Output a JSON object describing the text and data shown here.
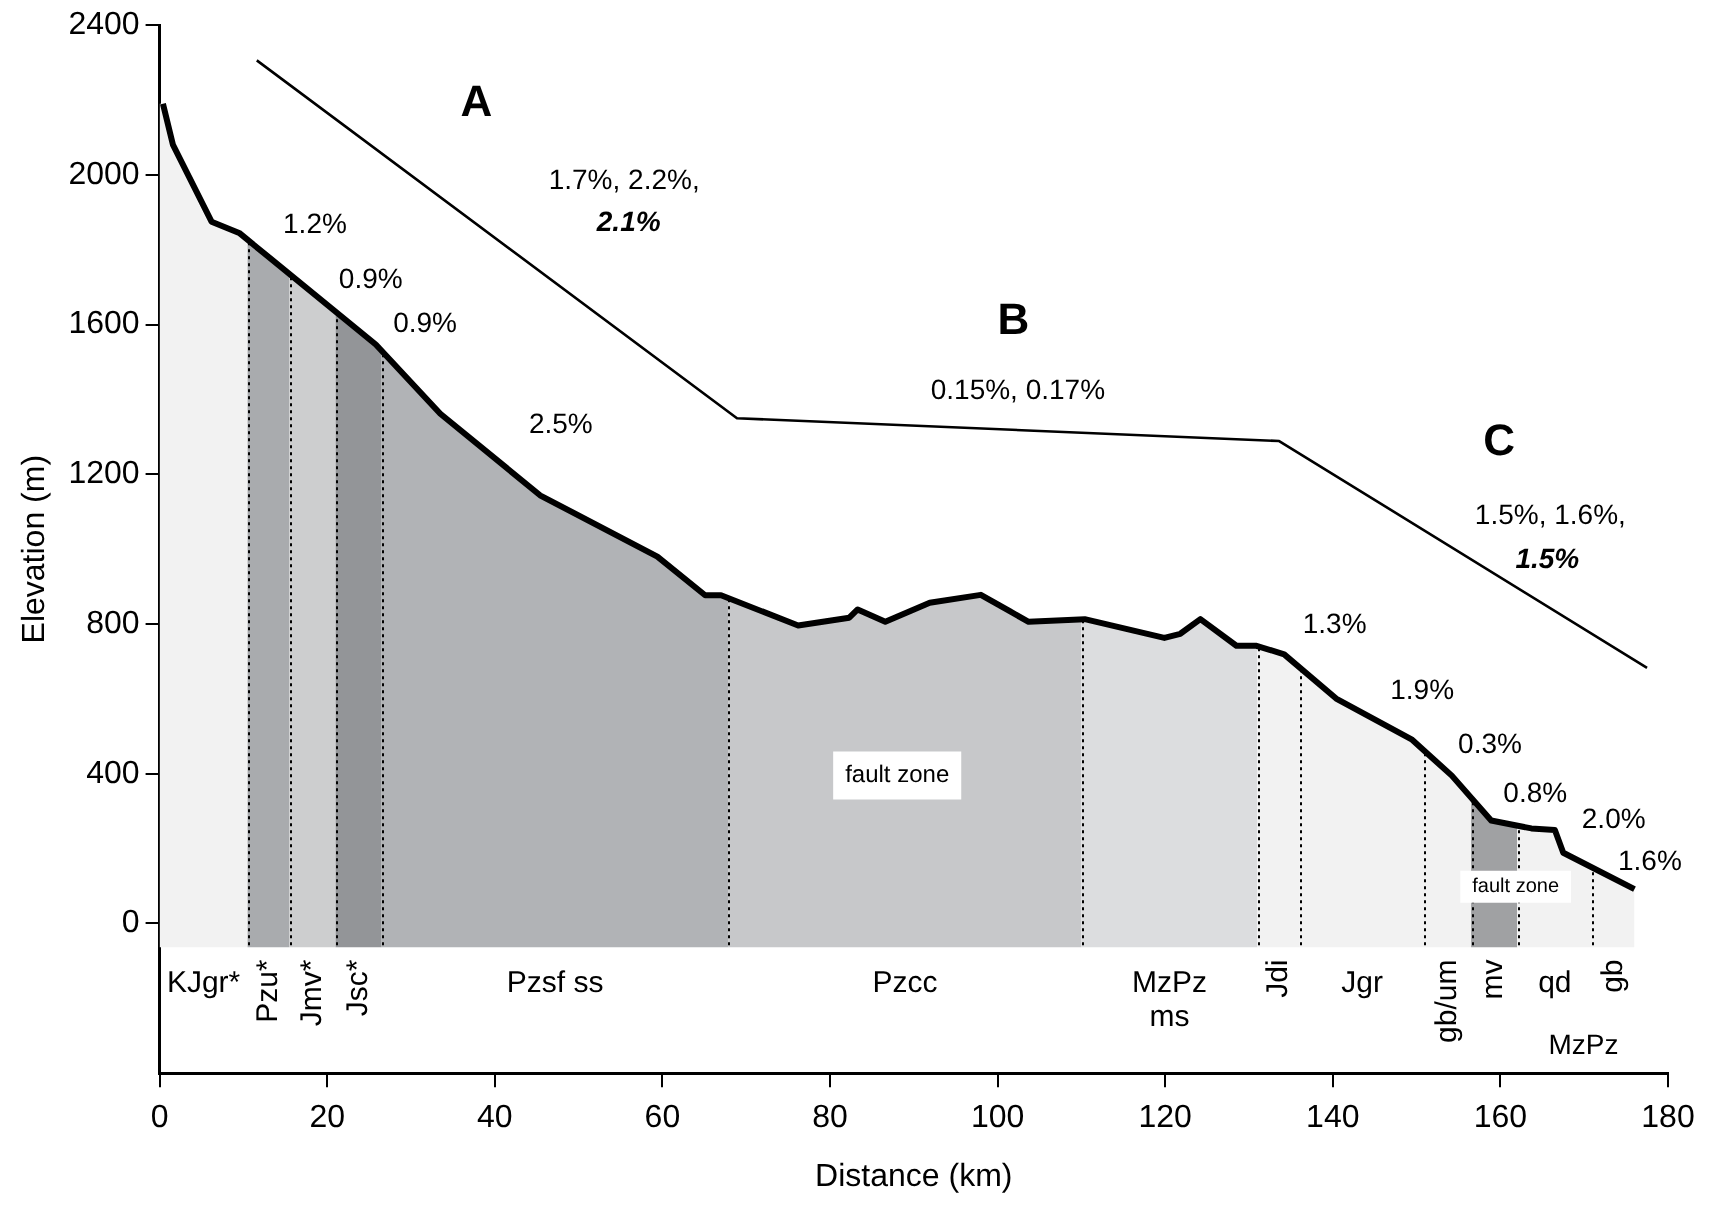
{
  "chart_data": {
    "type": "line",
    "xlabel": "Distance (km)",
    "ylabel": "Elevation (m)",
    "xlim": [
      0,
      180
    ],
    "xticks": [
      0,
      20,
      40,
      60,
      80,
      100,
      120,
      140,
      160,
      180
    ],
    "ylim": [
      -400,
      2400
    ],
    "yticks": [
      0,
      400,
      800,
      1200,
      1600,
      2000,
      2400
    ],
    "grid": false,
    "legend": false,
    "series": [
      {
        "type": "line",
        "color": "#000000",
        "x": [
          0.4,
          1.6,
          6.2,
          9.5,
          25.8,
          33.5,
          45.4,
          59.4,
          65.1,
          67,
          76.2,
          82.3,
          83.3,
          86.6,
          91.9,
          98,
          101.4,
          103.7,
          110.4,
          119.9,
          121.8,
          124.2,
          128.5,
          130.9,
          134.2,
          140.4,
          149.4,
          154.2,
          158.9,
          163.7,
          166.5,
          167.5,
          176
        ],
        "values": [
          2190,
          2080,
          1875,
          1845,
          1547,
          1362,
          1144,
          980,
          877,
          877,
          796,
          817,
          839,
          806,
          857,
          878,
          835,
          806,
          813,
          763,
          774,
          813,
          742,
          742,
          719,
          601,
          492,
          395,
          275,
          254,
          250,
          189,
          92
        ]
      },
      {
        "type": "line",
        "color": "#000000",
        "x": [
          11.6,
          68.9,
          133.6,
          177.5
        ],
        "values": [
          2306,
          1350,
          1289,
          683
        ]
      }
    ],
    "bands": [
      {
        "axis": "x",
        "from": 0,
        "to": 10.5,
        "label": "KJgr*",
        "color": "#f2f2f2"
      },
      {
        "axis": "x",
        "from": 10.5,
        "to": 15.5,
        "label": "Pzu*",
        "color": "#a9abae"
      },
      {
        "axis": "x",
        "from": 15.5,
        "to": 21,
        "label": "Jmv*",
        "color": "#cdcecf"
      },
      {
        "axis": "x",
        "from": 21,
        "to": 26.5,
        "label": "Jsc*",
        "color": "#939598"
      },
      {
        "axis": "x",
        "from": 26.5,
        "to": 67.9,
        "label": "Pzsf ss",
        "color": "#b1b3b6"
      },
      {
        "axis": "x",
        "from": 67.9,
        "to": 110,
        "label": "Pzcc",
        "color": "#c7c8ca"
      },
      {
        "axis": "x",
        "from": 110,
        "to": 131,
        "label": "MzPz ms",
        "color": "#dcdddf"
      },
      {
        "axis": "x",
        "from": 131,
        "to": 136,
        "label": "Jdi",
        "color": "#f2f2f2"
      },
      {
        "axis": "x",
        "from": 136,
        "to": 151,
        "label": "Jgr",
        "color": "#f2f2f2"
      },
      {
        "axis": "x",
        "from": 151,
        "to": 156.5,
        "label": "gb/um",
        "color": "#f2f2f2"
      },
      {
        "axis": "x",
        "from": 156.5,
        "to": 162,
        "label": "mv",
        "color": "#a0a1a3"
      },
      {
        "axis": "x",
        "from": 162,
        "to": 171,
        "label": "qd",
        "color": "#f2f2f2"
      },
      {
        "axis": "x",
        "from": 171,
        "to": 176,
        "label": "gb",
        "color": "#f2f2f2"
      }
    ],
    "annotations": [
      "A",
      "1.7%, 2.2%,",
      "2.1%",
      "1.2%",
      "0.9%",
      "0.9%",
      "2.5%",
      "B",
      "0.15%, 0.17%",
      "C",
      "1.5%, 1.6%,",
      "1.5%",
      "1.3%",
      "1.9%",
      "0.3%",
      "0.8%",
      "2.0%",
      "1.6%",
      "fault zone",
      "fault zone",
      "MzPz"
    ]
  }
}
